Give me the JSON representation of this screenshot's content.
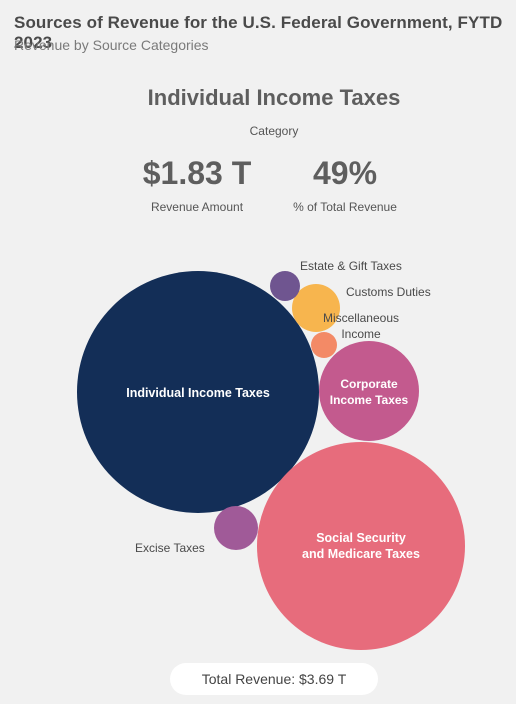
{
  "header": {
    "title": "Sources of Revenue for the U.S. Federal Government, FYTD 2023",
    "subtitle": "Revenue by Source Categories"
  },
  "selected": {
    "name": "Individual Income Taxes",
    "category_label": "Category",
    "amount": "$1.83 T",
    "amount_label": "Revenue Amount",
    "percent": "49%",
    "percent_label": "% of Total Revenue"
  },
  "footer": {
    "total_label": "Total Revenue: $3.69 T"
  },
  "chart_data": {
    "type": "bubble",
    "categories": [
      {
        "name": "Individual Income Taxes",
        "label_lines": [
          "Individual Income Taxes"
        ],
        "color": "#132e57",
        "label_inside": true
      },
      {
        "name": "Social Security and Medicare Taxes",
        "label_lines": [
          "Social Security",
          "and Medicare Taxes"
        ],
        "color": "#e76c7c",
        "label_inside": true
      },
      {
        "name": "Corporate Income Taxes",
        "label_lines": [
          "Corporate",
          "Income Taxes"
        ],
        "color": "#c35a8e",
        "label_inside": true
      },
      {
        "name": "Excise Taxes",
        "label_lines": [
          "Excise Taxes"
        ],
        "color": "#a05a98",
        "label_inside": false
      },
      {
        "name": "Customs Duties",
        "label_lines": [
          "Customs Duties"
        ],
        "color": "#f7b54e",
        "label_inside": false
      },
      {
        "name": "Estate & Gift Taxes",
        "label_lines": [
          "Estate & Gift Taxes"
        ],
        "color": "#6f5590",
        "label_inside": false
      },
      {
        "name": "Miscellaneous Income",
        "label_lines": [
          "Miscellaneous",
          "Income"
        ],
        "color": "#f38a66",
        "label_inside": false
      }
    ]
  }
}
